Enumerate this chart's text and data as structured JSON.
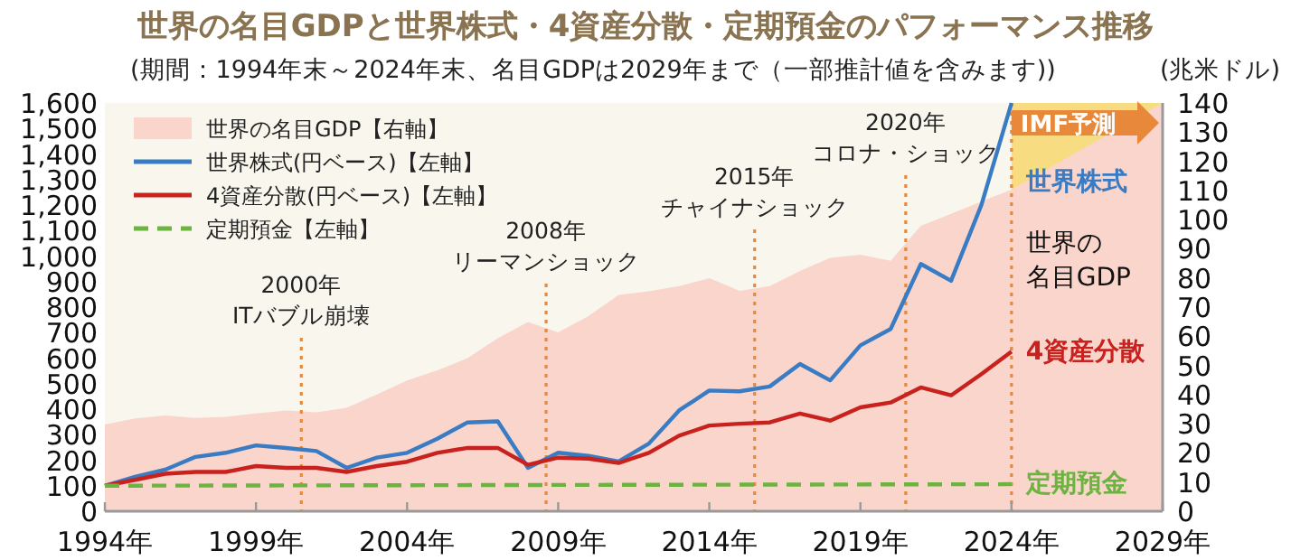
{
  "chart_data": {
    "type": "line",
    "title": "世界の名目GDPと世界株式・4資産分散・定期預金のパフォーマンス推移",
    "subtitle": "(期間：1994年末～2024年末、名目GDPは2029年まで（一部推計値を含みます))",
    "y2label": "(兆米ドル)",
    "x": [
      1994,
      1995,
      1996,
      1997,
      1998,
      1999,
      2000,
      2001,
      2002,
      2003,
      2004,
      2005,
      2006,
      2007,
      2008,
      2009,
      2010,
      2011,
      2012,
      2013,
      2014,
      2015,
      2016,
      2017,
      2018,
      2019,
      2020,
      2021,
      2022,
      2023,
      2024
    ],
    "series": [
      {
        "name": "世界の名目GDP【右軸】",
        "type": "area",
        "axis": "y2",
        "color": "#f9d5cc",
        "x": [
          1994,
          1995,
          1996,
          1997,
          1998,
          1999,
          2000,
          2001,
          2002,
          2003,
          2004,
          2005,
          2006,
          2007,
          2008,
          2009,
          2010,
          2011,
          2012,
          2013,
          2014,
          2015,
          2016,
          2017,
          2018,
          2019,
          2020,
          2021,
          2022,
          2023,
          2024,
          2029
        ],
        "values": [
          29.7,
          31.8,
          32.8,
          32,
          32.4,
          33.5,
          34.5,
          33.9,
          35.5,
          40,
          44.8,
          48.3,
          52.5,
          59.3,
          64.9,
          61.3,
          66.9,
          74.2,
          75.4,
          77.2,
          79.9,
          75.6,
          77.2,
          82.4,
          86.9,
          88,
          85.9,
          97.9,
          102,
          106.2,
          110.3,
          140
        ]
      },
      {
        "name": "世界株式(円ベース)【左軸】",
        "color": "#3a7cc4",
        "values": [
          100,
          135,
          163,
          213,
          229,
          258,
          248,
          236,
          170,
          210,
          229,
          284,
          348,
          352,
          170,
          229,
          217,
          195,
          265,
          395,
          473,
          470,
          489,
          577,
          513,
          650,
          714,
          969,
          903,
          1199,
          1600
        ]
      },
      {
        "name": "4資産分散(円ベース)【左軸】",
        "color": "#c8211e",
        "values": [
          100,
          123,
          147,
          154,
          154,
          177,
          170,
          170,
          154,
          177,
          194,
          229,
          248,
          248,
          182,
          210,
          206,
          189,
          229,
          296,
          336,
          343,
          348,
          383,
          355,
          407,
          426,
          485,
          454,
          537,
          626
        ]
      },
      {
        "name": "定期預金【左軸】",
        "color": "#6db33f",
        "line_style": "dashed",
        "x": [
          1994,
          2024
        ],
        "values": [
          100,
          106
        ]
      }
    ],
    "xlim": [
      1994,
      2029
    ],
    "xticks": [
      {
        "value": 1994,
        "label": "1994年"
      },
      {
        "value": 1999,
        "label": "1999年"
      },
      {
        "value": 2004,
        "label": "2004年"
      },
      {
        "value": 2009,
        "label": "2009年"
      },
      {
        "value": 2014,
        "label": "2014年"
      },
      {
        "value": 2019,
        "label": "2019年"
      },
      {
        "value": 2024,
        "label": "2024年"
      },
      {
        "value": 2029,
        "label": "2029年"
      }
    ],
    "ylim": [
      0,
      1600
    ],
    "yticks": [
      0,
      100,
      200,
      300,
      400,
      500,
      600,
      700,
      800,
      900,
      {
        "value": 1000,
        "label": "1,000"
      },
      {
        "value": 1100,
        "label": "1,100"
      },
      {
        "value": 1200,
        "label": "1,200"
      },
      {
        "value": 1300,
        "label": "1,300"
      },
      {
        "value": 1400,
        "label": "1,400"
      },
      {
        "value": 1500,
        "label": "1,500"
      },
      {
        "value": 1600,
        "label": "1,600"
      }
    ],
    "y2lim": [
      0,
      140
    ],
    "y2ticks": [
      0,
      10,
      20,
      30,
      40,
      50,
      60,
      70,
      80,
      90,
      100,
      110,
      120,
      130,
      140
    ],
    "ref_lines": [
      {
        "axis": "x",
        "value": 2000.5,
        "label": "2000年ITバブル崩壊",
        "color": "#e8883a",
        "line_style": "dotted"
      },
      {
        "axis": "x",
        "value": 2008.6,
        "label": "2008年リーマンショック",
        "color": "#e8883a",
        "line_style": "dotted"
      },
      {
        "axis": "x",
        "value": 2015.5,
        "label": "2015年チャイナショック",
        "color": "#e8883a",
        "line_style": "dotted"
      },
      {
        "axis": "x",
        "value": 2020.5,
        "label": "2020年コロナ・ショック",
        "color": "#e8883a",
        "line_style": "dotted"
      },
      {
        "axis": "x",
        "value": 2024,
        "color": "#e8883a",
        "line_style": "dotted"
      }
    ],
    "bands": [
      {
        "axis": "x",
        "from": 2024,
        "to": 2029,
        "label": "IMF予測",
        "color": "#f7dc82"
      }
    ],
    "annotations": [
      "世界の名目GDP",
      "世界株式",
      "4資産分散",
      "定期預金"
    ],
    "legend": "top left"
  }
}
